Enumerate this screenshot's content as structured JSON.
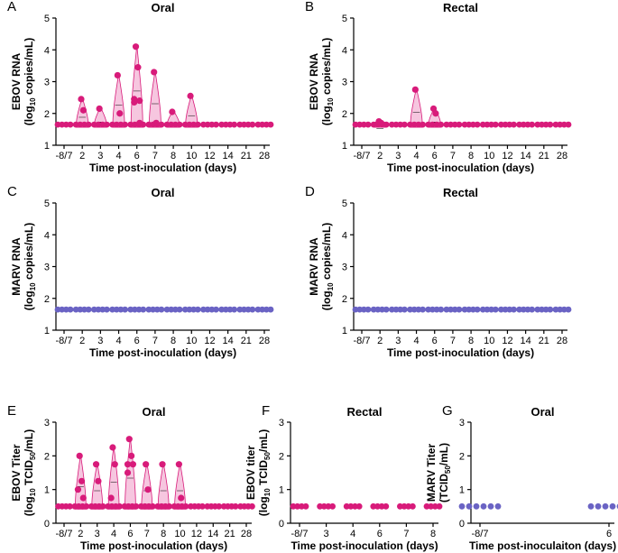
{
  "colors": {
    "ebov": "#d81b7a",
    "ebov_fill": "#f3b3d4",
    "marv": "#6a63c4",
    "axis": "#000000"
  },
  "chart_data": [
    {
      "panel": "A",
      "type": "scatter",
      "subtype": "violin+points",
      "title": "Oral",
      "ylabel": "EBOV RNA",
      "ylabel_sub": [
        "(log",
        "10",
        " copies/mL)"
      ],
      "xlabel": "Time post-inoculation (days)",
      "categories": [
        "-8/7",
        "2",
        "3",
        "4",
        "6",
        "7",
        "8",
        "10",
        "12",
        "14",
        "21",
        "28"
      ],
      "ylim": [
        1,
        5
      ],
      "yticks": [
        "1",
        "2",
        "3",
        "4",
        "5"
      ],
      "baseline": 1.65,
      "color": "ebov",
      "points": [
        [],
        [
          2.45,
          2.1,
          1.65
        ],
        [
          2.15,
          1.65
        ],
        [
          3.2,
          2.0,
          1.65
        ],
        [
          4.1,
          3.45,
          2.45,
          2.4,
          2.35,
          1.7
        ],
        [
          3.3,
          1.7
        ],
        [
          2.05,
          1.65
        ],
        [
          2.55,
          1.65
        ],
        [],
        [],
        [],
        []
      ]
    },
    {
      "panel": "B",
      "type": "scatter",
      "subtype": "violin+points",
      "title": "Rectal",
      "ylabel": "EBOV RNA",
      "ylabel_sub": [
        "(log",
        "10",
        " copies/mL)"
      ],
      "xlabel": "Time post-inoculation (days)",
      "categories": [
        "-8/7",
        "2",
        "3",
        "4",
        "6",
        "7",
        "8",
        "10",
        "12",
        "14",
        "21",
        "28"
      ],
      "ylim": [
        1,
        5
      ],
      "yticks": [
        "1",
        "2",
        "3",
        "4",
        "5"
      ],
      "baseline": 1.65,
      "color": "ebov",
      "points": [
        [],
        [
          1.75,
          1.7
        ],
        [],
        [
          2.75,
          1.65
        ],
        [
          2.15,
          2.0,
          1.65
        ],
        [],
        [],
        [],
        [],
        [],
        [],
        []
      ]
    },
    {
      "panel": "C",
      "type": "scatter",
      "subtype": "violin+points",
      "title": "Oral",
      "ylabel": "MARV RNA",
      "ylabel_sub": [
        "(log",
        "10",
        " copies/mL)"
      ],
      "xlabel": "Time post-inoculation (days)",
      "categories": [
        "-8/7",
        "2",
        "3",
        "4",
        "6",
        "7",
        "8",
        "10",
        "12",
        "14",
        "21",
        "28"
      ],
      "ylim": [
        1,
        5
      ],
      "yticks": [
        "1",
        "2",
        "3",
        "4",
        "5"
      ],
      "baseline": 1.65,
      "color": "marv",
      "points": [
        [],
        [],
        [],
        [],
        [],
        [],
        [],
        [],
        [],
        [],
        [],
        []
      ]
    },
    {
      "panel": "D",
      "type": "scatter",
      "subtype": "violin+points",
      "title": "Rectal",
      "ylabel": "MARV RNA",
      "ylabel_sub": [
        "(log",
        "10",
        " copies/mL)"
      ],
      "xlabel": "Time post-inoculation (days)",
      "categories": [
        "-8/7",
        "2",
        "3",
        "4",
        "6",
        "7",
        "8",
        "10",
        "12",
        "14",
        "21",
        "28"
      ],
      "ylim": [
        1,
        5
      ],
      "yticks": [
        "1",
        "2",
        "3",
        "4",
        "5"
      ],
      "baseline": 1.65,
      "color": "marv",
      "points": [
        [],
        [],
        [],
        [],
        [],
        [],
        [],
        [],
        [],
        [],
        [],
        []
      ]
    },
    {
      "panel": "E",
      "type": "scatter",
      "subtype": "violin+points",
      "title": "Oral",
      "ylabel": "EBOV Titer",
      "ylabel_sub": [
        "(log",
        "10",
        " TCID",
        "50",
        "/mL)"
      ],
      "xlabel": "Time post-inoculation (days)",
      "categories": [
        "-8/7",
        "2",
        "3",
        "4",
        "6",
        "7",
        "8",
        "10",
        "12",
        "14",
        "21",
        "28"
      ],
      "ylim": [
        0,
        3
      ],
      "yticks": [
        "0",
        "1",
        "2",
        "3"
      ],
      "baseline": 0.5,
      "color": "ebov",
      "points": [
        [],
        [
          2.0,
          1.25,
          1.0,
          0.75,
          0.5
        ],
        [
          1.75,
          1.25,
          0.5
        ],
        [
          2.25,
          1.75,
          0.75,
          0.5
        ],
        [
          2.5,
          2.0,
          1.75,
          1.75,
          1.5,
          0.5
        ],
        [
          1.75,
          1.0,
          0.5
        ],
        [
          1.75,
          0.5
        ],
        [
          1.75,
          0.75,
          0.5
        ],
        [],
        [],
        [],
        []
      ]
    },
    {
      "panel": "F",
      "type": "scatter",
      "subtype": "violin+points",
      "title": "Rectal",
      "ylabel": "EBOV titer",
      "ylabel_sub": [
        "(log",
        "10",
        " TCID",
        "50",
        "/mL)"
      ],
      "xlabel": "Time post-inoculation (days)",
      "categories": [
        "-8/7",
        "3",
        "4",
        "6",
        "7",
        "8"
      ],
      "ylim": [
        0,
        3
      ],
      "yticks": [
        "0",
        "1",
        "2",
        "3"
      ],
      "baseline": 0.5,
      "color": "ebov",
      "points": [
        [],
        [],
        [],
        [],
        [],
        []
      ]
    },
    {
      "panel": "G",
      "type": "scatter",
      "subtype": "points",
      "title": "Oral",
      "ylabel": "MARV Titer",
      "ylabel_sub": [
        "(TCID",
        "50",
        "/mL)"
      ],
      "xlabel": "Time post-inoculaiton (days)",
      "categories": [
        "-8/7",
        "6"
      ],
      "ylim": [
        0,
        3
      ],
      "yticks": [
        "0",
        "1",
        "2",
        "3"
      ],
      "baseline": 0.5,
      "color": "marv",
      "points": [
        [],
        []
      ]
    }
  ]
}
